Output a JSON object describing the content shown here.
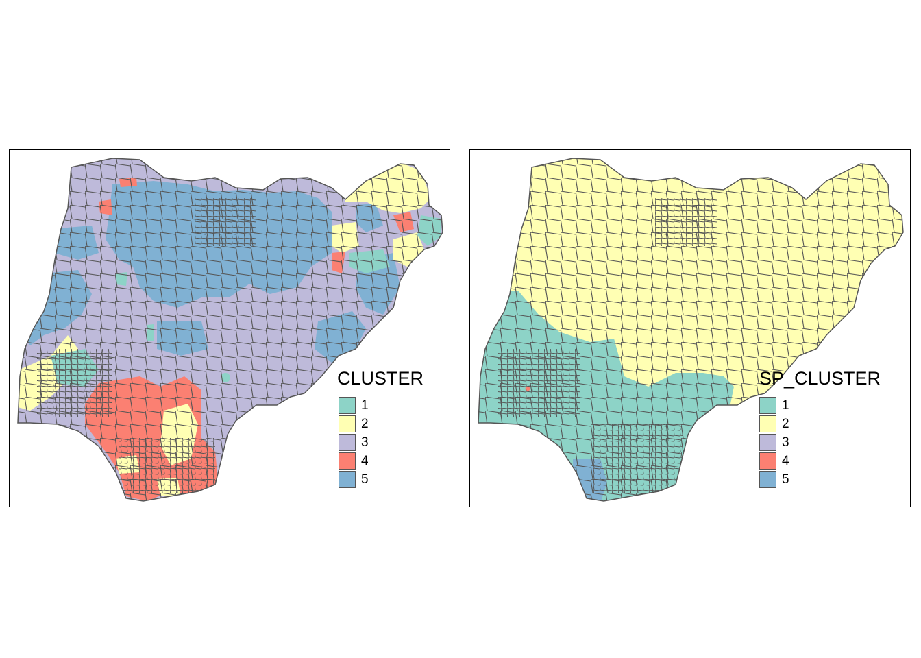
{
  "palette": {
    "1": "#8dd3c7",
    "2": "#ffffb3",
    "3": "#bebada",
    "4": "#fb8072",
    "5": "#80b1d3"
  },
  "boundary_color": "#555555",
  "maps": [
    {
      "legend_title": "CLUSTER",
      "legend": [
        {
          "label": "1",
          "color": "#8dd3c7"
        },
        {
          "label": "2",
          "color": "#ffffb3"
        },
        {
          "label": "3",
          "color": "#bebada"
        },
        {
          "label": "4",
          "color": "#fb8072"
        },
        {
          "label": "5",
          "color": "#80b1d3"
        }
      ],
      "base_cluster": "3"
    },
    {
      "legend_title": "SP_CLUSTER",
      "legend": [
        {
          "label": "1",
          "color": "#8dd3c7"
        },
        {
          "label": "2",
          "color": "#ffffb3"
        },
        {
          "label": "3",
          "color": "#bebada"
        },
        {
          "label": "4",
          "color": "#fb8072"
        },
        {
          "label": "5",
          "color": "#80b1d3"
        }
      ],
      "base_cluster": "2"
    }
  ]
}
